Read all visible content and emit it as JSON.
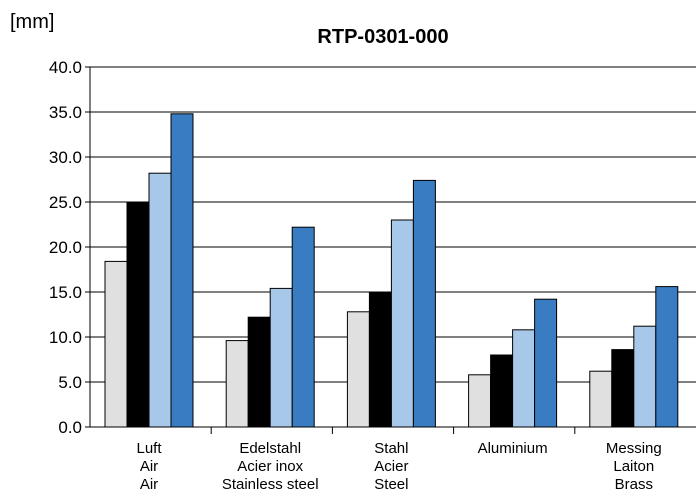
{
  "chart_data": {
    "type": "bar",
    "title": "RTP-0301-000",
    "ylabel": "[mm]",
    "xlabel": "",
    "ylim": [
      0,
      40
    ],
    "yticks": [
      "0.0",
      "5.0",
      "10.0",
      "15.0",
      "20.0",
      "25.0",
      "30.0",
      "35.0",
      "40.0"
    ],
    "grid": true,
    "categories": [
      [
        "Luft",
        "Air",
        "Air"
      ],
      [
        "Edelstahl",
        "Acier inox",
        "Stainless steel"
      ],
      [
        "Stahl",
        "Acier",
        "Steel"
      ],
      [
        "Aluminium"
      ],
      [
        "Messing",
        "Laiton",
        "Brass"
      ]
    ],
    "series": [
      {
        "color": "#e0e0e0",
        "values": [
          18.4,
          9.6,
          12.8,
          5.8,
          6.2
        ]
      },
      {
        "color": "#000000",
        "values": [
          25.0,
          12.2,
          15.0,
          8.0,
          8.6
        ]
      },
      {
        "color": "#a8c8ea",
        "values": [
          28.2,
          15.4,
          23.0,
          10.8,
          11.2
        ]
      },
      {
        "color": "#3a7cc2",
        "values": [
          34.8,
          22.2,
          27.4,
          14.2,
          15.6
        ]
      }
    ]
  }
}
